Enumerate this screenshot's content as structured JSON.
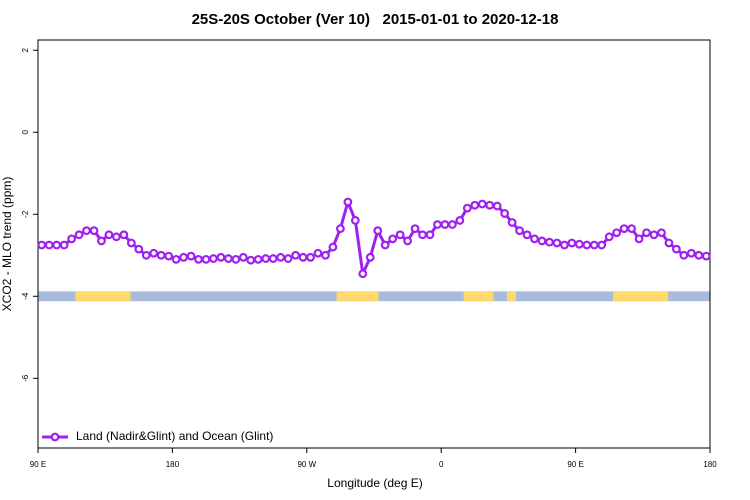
{
  "chart_data": {
    "type": "line",
    "title": "25S-20S October (Ver 10)   2015-01-01 to 2020-12-18",
    "xlabel": "Longitude (deg E)",
    "ylabel": "XCO2 - MLO trend (ppm)",
    "x": [
      92.5,
      97.5,
      102.5,
      107.5,
      112.5,
      117.5,
      122.5,
      127.5,
      132.5,
      137.5,
      142.5,
      147.5,
      152.5,
      157.5,
      162.5,
      167.5,
      172.5,
      177.5,
      182.5,
      187.5,
      192.5,
      197.5,
      202.5,
      207.5,
      212.5,
      217.5,
      222.5,
      227.5,
      232.5,
      237.5,
      242.5,
      247.5,
      252.5,
      257.5,
      262.5,
      267.5,
      272.5,
      277.5,
      282.5,
      287.5,
      292.5,
      297.5,
      302.5,
      307.5,
      312.5,
      317.5,
      322.5,
      327.5,
      332.5,
      337.5,
      342.5,
      347.5,
      352.5,
      357.5,
      362.5,
      367.5,
      372.5,
      377.5,
      382.5,
      387.5,
      392.5,
      397.5,
      402.5,
      407.5,
      412.5,
      417.5,
      422.5,
      427.5,
      432.5,
      437.5,
      442.5,
      447.5,
      452.5,
      457.5,
      462.5,
      467.5,
      472.5,
      477.5,
      482.5,
      487.5,
      492.5,
      497.5,
      502.5,
      507.5,
      512.5,
      517.5,
      522.5,
      527.5,
      532.5,
      537.5
    ],
    "series": [
      {
        "name": "Land (Nadir&Glint) and Ocean (Glint)",
        "color": "#a020f0",
        "values": [
          -2.75,
          -2.75,
          -2.75,
          -2.75,
          -2.6,
          -2.5,
          -2.4,
          -2.4,
          -2.65,
          -2.5,
          -2.55,
          -2.5,
          -2.7,
          -2.85,
          -3.0,
          -2.95,
          -3.0,
          -3.02,
          -3.1,
          -3.05,
          -3.02,
          -3.1,
          -3.1,
          -3.08,
          -3.05,
          -3.08,
          -3.1,
          -3.05,
          -3.12,
          -3.1,
          -3.08,
          -3.08,
          -3.05,
          -3.08,
          -3.0,
          -3.05,
          -3.05,
          -2.95,
          -3.0,
          -2.8,
          -2.35,
          -1.7,
          -2.15,
          -3.45,
          -3.05,
          -2.4,
          -2.75,
          -2.6,
          -2.5,
          -2.65,
          -2.35,
          -2.5,
          -2.5,
          -2.25,
          -2.25,
          -2.25,
          -2.15,
          -1.85,
          -1.78,
          -1.75,
          -1.78,
          -1.8,
          -1.98,
          -2.2,
          -2.4,
          -2.5,
          -2.6,
          -2.65,
          -2.68,
          -2.7,
          -2.75,
          -2.7,
          -2.73,
          -2.75,
          -2.75,
          -2.75,
          -2.55,
          -2.45,
          -2.35,
          -2.35,
          -2.6,
          -2.45,
          -2.5,
          -2.45,
          -2.7,
          -2.85,
          -3.0,
          -2.95,
          -3.0,
          -3.02
        ]
      }
    ],
    "surface_band": {
      "ylim": [
        -4.12,
        -3.88
      ],
      "ocean_color": "#a7bbdb",
      "land_color": "#fdd96e",
      "land": [
        [
          115,
          152
        ],
        [
          290,
          318
        ],
        [
          375,
          395
        ],
        [
          404,
          410
        ],
        [
          475,
          512
        ]
      ]
    },
    "xlim": [
      90,
      540
    ],
    "xticks": [
      {
        "value": 90,
        "label": "90 E"
      },
      180,
      {
        "value": 270,
        "label": "90 W"
      },
      {
        "value": 360,
        "label": "0"
      },
      {
        "value": 450,
        "label": "90 E"
      },
      {
        "value": 540,
        "label": "180"
      }
    ],
    "ylim": [
      -7.7,
      2.25
    ],
    "yticks": [
      2,
      0,
      -2,
      -4,
      -6
    ],
    "legend": "bottomleft"
  }
}
